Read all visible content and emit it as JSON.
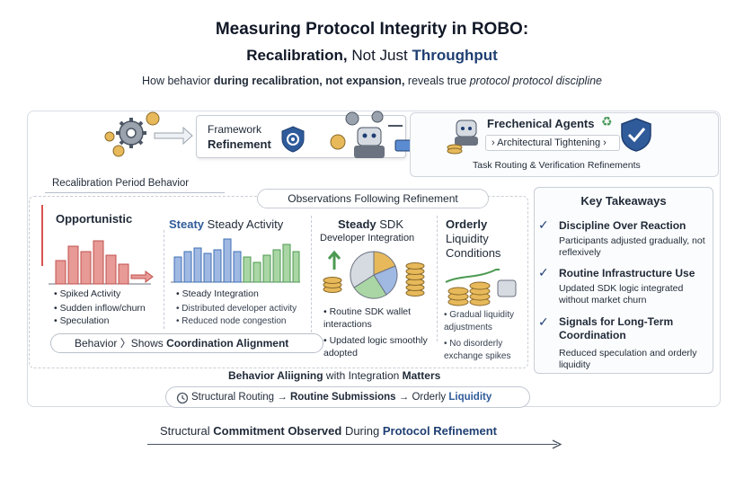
{
  "header": {
    "title": "Measuring Protocol Integrity in ROBO:",
    "subtitle_part1": "Recalibration,",
    "subtitle_part2": "Not Just",
    "subtitle_part3": "Throughput",
    "tagline_pre": "How behavior",
    "tagline_bold": "during recalibration, not expansion,",
    "tagline_mid": "reveals true",
    "tagline_italic": "protocol protocol discipline"
  },
  "top_flow": {
    "framework_line1": "Framework",
    "framework_line2": "Refinement",
    "agents_title": "Frechenical Agents",
    "arch_tightening": "› Architectural Tightening ›",
    "task_routing": "Task Routing & Verification Refinements"
  },
  "section": {
    "recalibration_label": "Recalibration Period Behavior",
    "observations_label": "Observations Following Refinement"
  },
  "columns": {
    "opportunistic": {
      "title": "Opportunistic",
      "bullets": [
        "Spiked Activity",
        "Sudden inflow/churn",
        "Speculation"
      ]
    },
    "steady_activity": {
      "title_blue": "Steaty",
      "title_rest": "Steady Activity",
      "bullets": [
        "Steady Integration",
        "Distributed developer activity",
        "Reduced node congestion"
      ]
    },
    "steady_sdk": {
      "title_bold": "Steady",
      "title_rest": "SDK",
      "title_line2": "Developer Integration",
      "bullets": [
        "Routine SDK wallet interactions",
        "Updated logic smoothly adopted"
      ]
    },
    "orderly": {
      "title_line1": "Orderly",
      "title_line2": "Liquidity",
      "title_line3": "Conditions",
      "bullets": [
        "Gradual liquidity adjustments",
        "No disorderly exchange spikes"
      ]
    }
  },
  "behavior_pill": {
    "pre": "Behavior",
    "sep": "〉Shows",
    "bold": "Coordination Alignment"
  },
  "behavior_align": {
    "bold1": "Behavior Aliigning",
    "mid": "with Integration",
    "bold2": "Matters"
  },
  "routing_pill": {
    "step1": "Structural Routing",
    "arrow": "→",
    "step2": "Routine Submissions",
    "step3_pre": "Orderly",
    "step3_bold": "Liquidity"
  },
  "structural_commitment": {
    "pre": "Structural",
    "bold": "Commitment Observed",
    "mid": "During",
    "blue": "Protocol Refinement"
  },
  "key_takeaways": {
    "title": "Key Takeaways",
    "items": [
      {
        "head": "Discipline Over Reaction",
        "body": "Participants adjusted gradually, not reflexively"
      },
      {
        "head_bold": "Routine Infrastructure",
        "head_rest": "Use",
        "body": "Updated SDK logic integrated without market churn"
      },
      {
        "head_bold": "Signals for Long-Term Coordination",
        "body": "Reduced speculation and orderly liquidity"
      }
    ]
  },
  "colors": {
    "navy": "#1f3f72",
    "accent_blue": "#2f5b9a",
    "red_bars": "#d9534f",
    "green_bars": "#5cb85c",
    "blue_bars": "#5b8bd0",
    "gold": "#d4a24c"
  },
  "icons": [
    "gear-icon",
    "shield-check-icon",
    "robot-icon",
    "coin-stack-icon",
    "pie-chart-icon",
    "recycle-icon",
    "check-icon",
    "clock-icon"
  ]
}
